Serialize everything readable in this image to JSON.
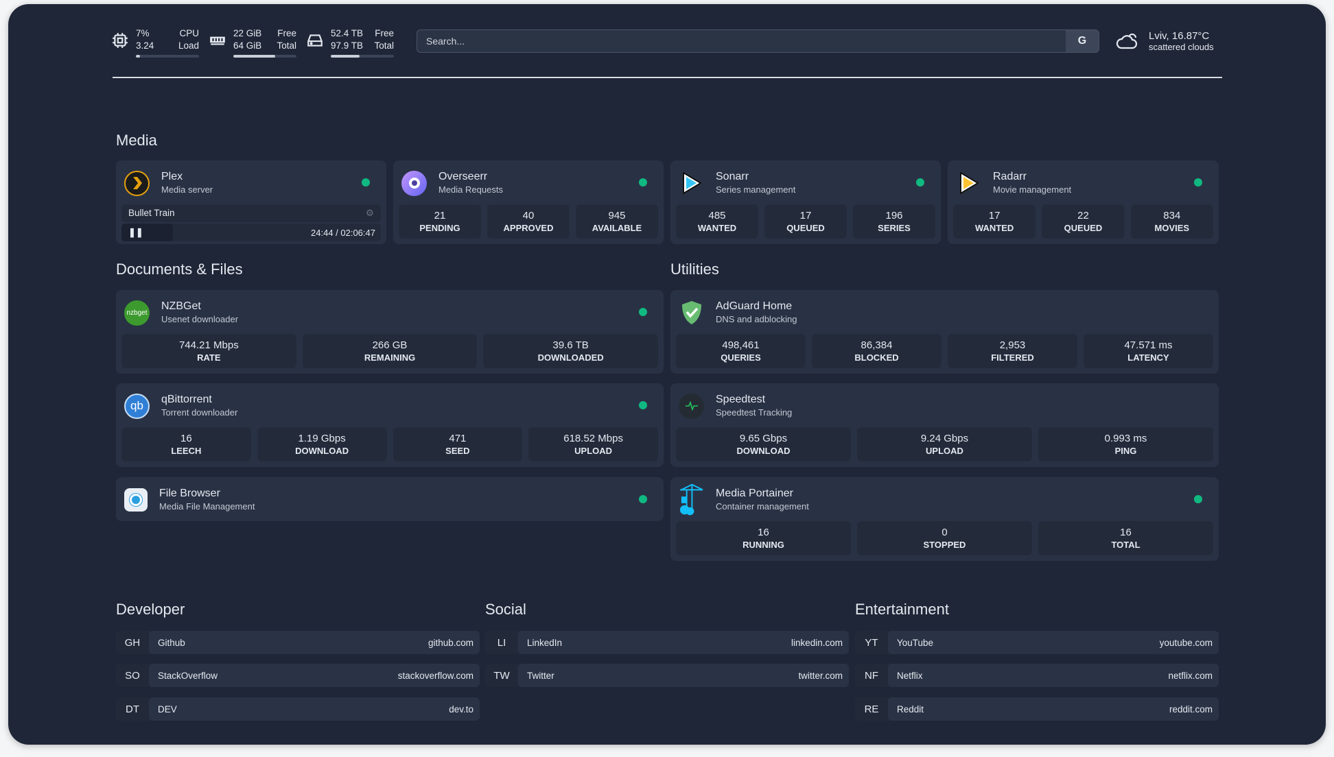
{
  "resources": {
    "cpu": {
      "icon": "cpu-icon",
      "value1": "7%",
      "label1": "CPU",
      "value2": "3.24",
      "label2": "Load",
      "usage_percent": 7
    },
    "memory": {
      "icon": "memory-icon",
      "value1": "22 GiB",
      "label1": "Free",
      "value2": "64 GiB",
      "label2": "Total",
      "usage_percent": 66
    },
    "disk": {
      "icon": "disk-icon",
      "value1": "52.4 TB",
      "label1": "Free",
      "value2": "97.9 TB",
      "label2": "Total",
      "usage_percent": 46
    }
  },
  "search": {
    "placeholder": "Search...",
    "provider_label": "G"
  },
  "weather": {
    "icon": "cloud-icon",
    "location_temp": "Lviv, 16.87°C",
    "condition": "scattered clouds"
  },
  "status_color": "#10b981",
  "sections": {
    "media": "Media",
    "documents": "Documents & Files",
    "utilities": "Utilities",
    "developer": "Developer",
    "social": "Social",
    "entertainment": "Entertainment"
  },
  "media": {
    "plex": {
      "name": "Plex",
      "sub": "Media server",
      "now_playing": "Bullet Train",
      "time": "24:44 / 02:06:47"
    },
    "overseerr": {
      "name": "Overseerr",
      "sub": "Media Requests",
      "stats": [
        {
          "v": "21",
          "l": "PENDING"
        },
        {
          "v": "40",
          "l": "APPROVED"
        },
        {
          "v": "945",
          "l": "AVAILABLE"
        }
      ]
    },
    "sonarr": {
      "name": "Sonarr",
      "sub": "Series management",
      "stats": [
        {
          "v": "485",
          "l": "WANTED"
        },
        {
          "v": "17",
          "l": "QUEUED"
        },
        {
          "v": "196",
          "l": "SERIES"
        }
      ]
    },
    "radarr": {
      "name": "Radarr",
      "sub": "Movie management",
      "stats": [
        {
          "v": "17",
          "l": "WANTED"
        },
        {
          "v": "22",
          "l": "QUEUED"
        },
        {
          "v": "834",
          "l": "MOVIES"
        }
      ]
    }
  },
  "docs": {
    "nzbget": {
      "name": "NZBGet",
      "sub": "Usenet downloader",
      "logo": "nzbget",
      "stats": [
        {
          "v": "744.21 Mbps",
          "l": "RATE"
        },
        {
          "v": "266 GB",
          "l": "REMAINING"
        },
        {
          "v": "39.6 TB",
          "l": "DOWNLOADED"
        }
      ]
    },
    "qbit": {
      "name": "qBittorrent",
      "sub": "Torrent downloader",
      "logo": "qb",
      "stats": [
        {
          "v": "16",
          "l": "LEECH"
        },
        {
          "v": "1.19 Gbps",
          "l": "DOWNLOAD"
        },
        {
          "v": "471",
          "l": "SEED"
        },
        {
          "v": "618.52 Mbps",
          "l": "UPLOAD"
        }
      ]
    },
    "filebrowser": {
      "name": "File Browser",
      "sub": "Media File Management"
    }
  },
  "utilities": {
    "adguard": {
      "name": "AdGuard Home",
      "sub": "DNS and adblocking",
      "stats": [
        {
          "v": "498,461",
          "l": "QUERIES"
        },
        {
          "v": "86,384",
          "l": "BLOCKED"
        },
        {
          "v": "2,953",
          "l": "FILTERED"
        },
        {
          "v": "47.571 ms",
          "l": "LATENCY"
        }
      ]
    },
    "speedtest": {
      "name": "Speedtest",
      "sub": "Speedtest Tracking",
      "stats": [
        {
          "v": "9.65 Gbps",
          "l": "DOWNLOAD"
        },
        {
          "v": "9.24 Gbps",
          "l": "UPLOAD"
        },
        {
          "v": "0.993 ms",
          "l": "PING"
        }
      ]
    },
    "portainer": {
      "name": "Media Portainer",
      "sub": "Container management",
      "stats": [
        {
          "v": "16",
          "l": "RUNNING"
        },
        {
          "v": "0",
          "l": "STOPPED"
        },
        {
          "v": "16",
          "l": "TOTAL"
        }
      ]
    }
  },
  "bookmarks": {
    "developer": [
      {
        "abbr": "GH",
        "name": "Github",
        "url": "github.com"
      },
      {
        "abbr": "SO",
        "name": "StackOverflow",
        "url": "stackoverflow.com"
      },
      {
        "abbr": "DT",
        "name": "DEV",
        "url": "dev.to"
      }
    ],
    "social": [
      {
        "abbr": "LI",
        "name": "LinkedIn",
        "url": "linkedin.com"
      },
      {
        "abbr": "TW",
        "name": "Twitter",
        "url": "twitter.com"
      }
    ],
    "entertainment": [
      {
        "abbr": "YT",
        "name": "YouTube",
        "url": "youtube.com"
      },
      {
        "abbr": "NF",
        "name": "Netflix",
        "url": "netflix.com"
      },
      {
        "abbr": "RE",
        "name": "Reddit",
        "url": "reddit.com"
      }
    ]
  }
}
